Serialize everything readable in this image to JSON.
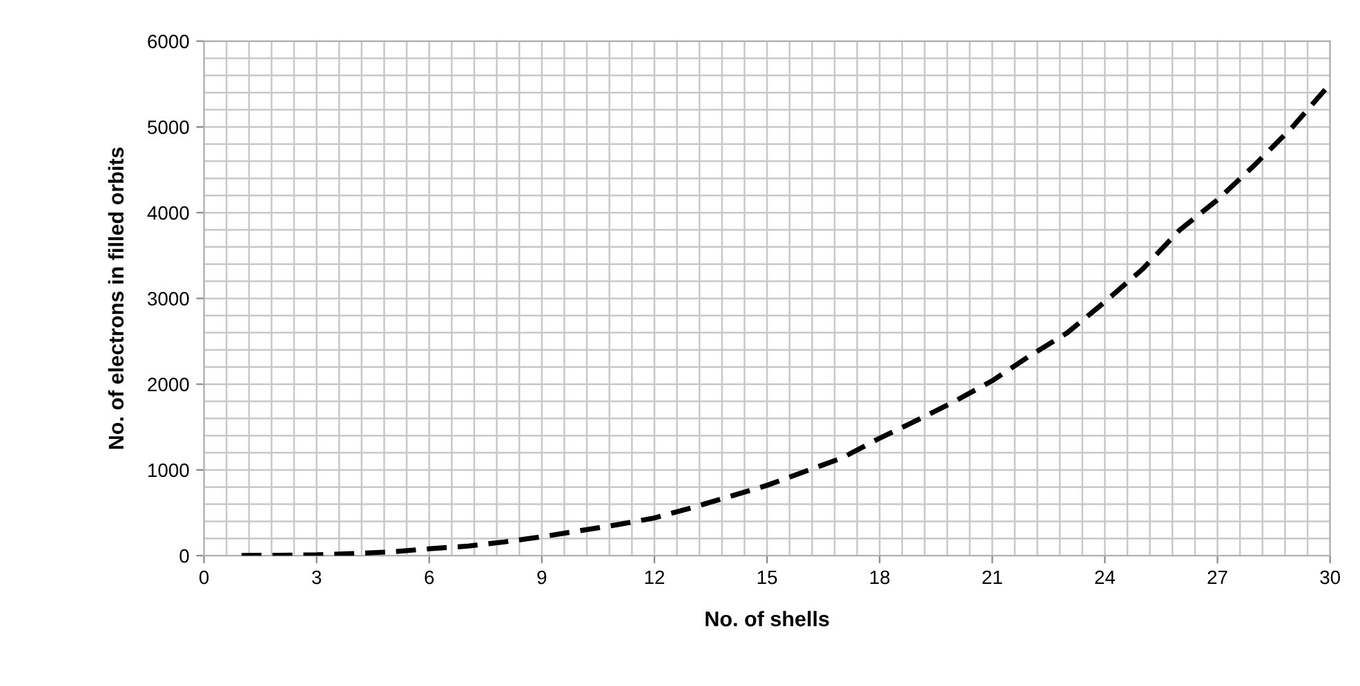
{
  "chart_data": {
    "type": "line",
    "xlabel": "No. of shells",
    "ylabel": "No. of electrons in filled orbits",
    "x": [
      1,
      2,
      3,
      4,
      5,
      6,
      7,
      8,
      9,
      10,
      11,
      12,
      13,
      14,
      15,
      16,
      17,
      18,
      19,
      20,
      21,
      22,
      23,
      24,
      25,
      26,
      27,
      28,
      29,
      30
    ],
    "series": [
      {
        "color": "#000000",
        "values": [
          2,
          5,
          10,
          25,
          45,
          80,
          110,
          160,
          220,
          290,
          360,
          440,
          560,
          690,
          820,
          980,
          1140,
          1370,
          1580,
          1800,
          2040,
          2330,
          2600,
          2960,
          3340,
          3800,
          4150,
          4560,
          5000,
          5500
        ]
      }
    ],
    "line_style": "dashed",
    "marker": "none",
    "grid": true,
    "xlim": [
      0,
      30
    ],
    "ylim": [
      0,
      6000
    ],
    "xticks": [
      0,
      {
        "value": 0.6,
        "label": null
      },
      {
        "value": 1.2,
        "label": null
      },
      {
        "value": 1.8,
        "label": null
      },
      {
        "value": 2.4,
        "label": null
      },
      3,
      {
        "value": 3.6,
        "label": null
      },
      {
        "value": 4.2,
        "label": null
      },
      {
        "value": 4.8,
        "label": null
      },
      {
        "value": 5.4,
        "label": null
      },
      6,
      {
        "value": 6.6,
        "label": null
      },
      {
        "value": 7.2,
        "label": null
      },
      {
        "value": 7.8,
        "label": null
      },
      {
        "value": 8.4,
        "label": null
      },
      9,
      {
        "value": 9.6,
        "label": null
      },
      {
        "value": 10.2,
        "label": null
      },
      {
        "value": 10.8,
        "label": null
      },
      {
        "value": 11.4,
        "label": null
      },
      12,
      {
        "value": 12.6,
        "label": null
      },
      {
        "value": 13.2,
        "label": null
      },
      {
        "value": 13.8,
        "label": null
      },
      {
        "value": 14.4,
        "label": null
      },
      15,
      {
        "value": 15.6,
        "label": null
      },
      {
        "value": 16.2,
        "label": null
      },
      {
        "value": 16.8,
        "label": null
      },
      {
        "value": 17.4,
        "label": null
      },
      18,
      {
        "value": 18.6,
        "label": null
      },
      {
        "value": 19.2,
        "label": null
      },
      {
        "value": 19.8,
        "label": null
      },
      {
        "value": 20.4,
        "label": null
      },
      21,
      {
        "value": 21.6,
        "label": null
      },
      {
        "value": 22.2,
        "label": null
      },
      {
        "value": 22.8,
        "label": null
      },
      {
        "value": 23.4,
        "label": null
      },
      24,
      {
        "value": 24.6,
        "label": null
      },
      {
        "value": 25.2,
        "label": null
      },
      {
        "value": 25.8,
        "label": null
      },
      {
        "value": 26.4,
        "label": null
      },
      27,
      {
        "value": 27.6,
        "label": null
      },
      {
        "value": 28.2,
        "label": null
      },
      {
        "value": 28.8,
        "label": null
      },
      {
        "value": 29.4,
        "label": null
      },
      30
    ],
    "yticks": [
      0,
      {
        "value": 200,
        "label": null
      },
      {
        "value": 400,
        "label": null
      },
      {
        "value": 600,
        "label": null
      },
      {
        "value": 800,
        "label": null
      },
      1000,
      {
        "value": 1200,
        "label": null
      },
      {
        "value": 1400,
        "label": null
      },
      {
        "value": 1600,
        "label": null
      },
      {
        "value": 1800,
        "label": null
      },
      2000,
      {
        "value": 2200,
        "label": null
      },
      {
        "value": 2400,
        "label": null
      },
      {
        "value": 2600,
        "label": null
      },
      {
        "value": 2800,
        "label": null
      },
      3000,
      {
        "value": 3200,
        "label": null
      },
      {
        "value": 3400,
        "label": null
      },
      {
        "value": 3600,
        "label": null
      },
      {
        "value": 3800,
        "label": null
      },
      4000,
      {
        "value": 4200,
        "label": null
      },
      {
        "value": 4400,
        "label": null
      },
      {
        "value": 4600,
        "label": null
      },
      {
        "value": 4800,
        "label": null
      },
      5000,
      {
        "value": 5200,
        "label": null
      },
      {
        "value": 5400,
        "label": null
      },
      {
        "value": 5600,
        "label": null
      },
      {
        "value": 5800,
        "label": null
      },
      6000
    ]
  }
}
